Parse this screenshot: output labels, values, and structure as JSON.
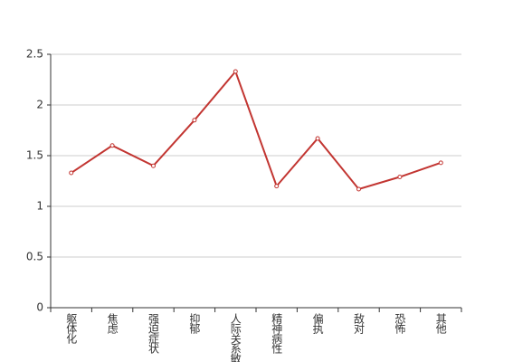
{
  "chart_data": {
    "type": "line",
    "categories": [
      "躯体化",
      "焦虑",
      "强迫症状",
      "抑郁",
      "人际关系敏感",
      "精神病性",
      "偏执",
      "敌对",
      "恐怖",
      "其他"
    ],
    "values": [
      1.33,
      1.6,
      1.4,
      1.85,
      2.33,
      1.2,
      1.67,
      1.17,
      1.29,
      1.43
    ],
    "color": "#c23531",
    "ylim": [
      0,
      2.5
    ],
    "yticks": [
      0,
      0.5,
      1,
      1.5,
      2,
      2.5
    ],
    "grid": true
  }
}
